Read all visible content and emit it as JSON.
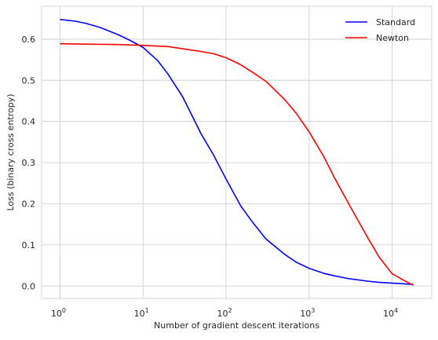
{
  "chart_data": {
    "type": "line",
    "xlabel": "Number of gradient descent iterations",
    "ylabel": "Loss (binary cross entropy)",
    "xscale": "log",
    "xlim": [
      0.6,
      30000
    ],
    "ylim": [
      -0.03,
      0.68
    ],
    "grid": true,
    "legend_position": "top-right",
    "x_ticks": [
      {
        "value": 1,
        "base": "10",
        "exp": "0"
      },
      {
        "value": 10,
        "base": "10",
        "exp": "1"
      },
      {
        "value": 100,
        "base": "10",
        "exp": "2"
      },
      {
        "value": 1000,
        "base": "10",
        "exp": "3"
      },
      {
        "value": 10000,
        "base": "10",
        "exp": "4"
      }
    ],
    "y_ticks": [
      {
        "value": 0.0,
        "label": "0.0"
      },
      {
        "value": 0.1,
        "label": "0.1"
      },
      {
        "value": 0.2,
        "label": "0.2"
      },
      {
        "value": 0.3,
        "label": "0.3"
      },
      {
        "value": 0.4,
        "label": "0.4"
      },
      {
        "value": 0.5,
        "label": "0.5"
      },
      {
        "value": 0.6,
        "label": "0.6"
      }
    ],
    "series": [
      {
        "name": "Standard",
        "color": "#0000ff",
        "x": [
          1,
          1.5,
          2,
          3,
          5,
          7,
          10,
          15,
          20,
          30,
          50,
          70,
          100,
          150,
          200,
          300,
          500,
          700,
          1000,
          1500,
          2000,
          3000,
          5000,
          7000,
          10000,
          18000
        ],
        "y": [
          0.648,
          0.644,
          0.639,
          0.629,
          0.611,
          0.597,
          0.58,
          0.548,
          0.515,
          0.46,
          0.37,
          0.32,
          0.26,
          0.195,
          0.16,
          0.115,
          0.078,
          0.058,
          0.043,
          0.031,
          0.025,
          0.018,
          0.012,
          0.009,
          0.007,
          0.004
        ]
      },
      {
        "name": "Newton",
        "color": "#ff0000",
        "x": [
          1,
          2,
          5,
          10,
          20,
          50,
          70,
          100,
          150,
          200,
          300,
          500,
          700,
          1000,
          1500,
          2000,
          3000,
          5000,
          7000,
          10000,
          15000,
          18000
        ],
        "y": [
          0.589,
          0.588,
          0.587,
          0.585,
          0.582,
          0.57,
          0.565,
          0.555,
          0.538,
          0.522,
          0.498,
          0.455,
          0.42,
          0.375,
          0.315,
          0.265,
          0.2,
          0.12,
          0.07,
          0.03,
          0.01,
          0.002
        ]
      }
    ]
  }
}
